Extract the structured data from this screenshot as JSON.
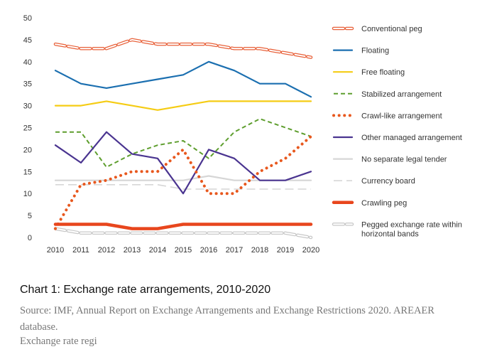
{
  "chart_data": {
    "type": "line",
    "title": "",
    "xlabel": "",
    "ylabel": "",
    "ylim": [
      0,
      50
    ],
    "yticks": [
      "0",
      "5",
      "10",
      "15",
      "20",
      "25",
      "30",
      "35",
      "40",
      "45",
      "50"
    ],
    "categories": [
      "2010",
      "2011",
      "2012",
      "2013",
      "2014",
      "2015",
      "2016",
      "2017",
      "2018",
      "2019",
      "2020"
    ],
    "legend_position": "right",
    "series": [
      {
        "name": "Conventional peg",
        "color": "#e8613a",
        "style": "outline-dash",
        "values": [
          44,
          43,
          43,
          45,
          44,
          44,
          44,
          43,
          43,
          42,
          41
        ]
      },
      {
        "name": "Floating",
        "color": "#1b6fb0",
        "style": "solid",
        "values": [
          38,
          35,
          34,
          35,
          36,
          37,
          40,
          38,
          35,
          35,
          32
        ]
      },
      {
        "name": "Free floating",
        "color": "#f5cc14",
        "style": "solid",
        "values": [
          30,
          30,
          31,
          30,
          29,
          30,
          31,
          31,
          31,
          31,
          31
        ]
      },
      {
        "name": "Stabilized arrangement",
        "color": "#5e9e2e",
        "style": "dashed",
        "values": [
          24,
          24,
          16,
          19,
          21,
          22,
          18,
          24,
          27,
          25,
          23
        ]
      },
      {
        "name": "Crawl-like arrangement",
        "color": "#e8581e",
        "style": "dotted",
        "values": [
          2,
          12,
          13,
          15,
          15,
          20,
          10,
          10,
          15,
          18,
          23
        ]
      },
      {
        "name": "Other managed arrangement",
        "color": "#4a3490",
        "style": "solid",
        "values": [
          21,
          17,
          24,
          19,
          18,
          10,
          20,
          18,
          13,
          13,
          15
        ]
      },
      {
        "name": "No separate legal tender",
        "color": "#d6d6d6",
        "style": "solid",
        "values": [
          13,
          13,
          13,
          13,
          13,
          13,
          14,
          13,
          13,
          13,
          13
        ]
      },
      {
        "name": "Currency board",
        "color": "#d6d6d6",
        "style": "long-dash",
        "values": [
          12,
          12,
          12,
          12,
          12,
          11,
          11,
          11,
          11,
          11,
          11
        ]
      },
      {
        "name": "Crawling peg",
        "color": "#e8461d",
        "style": "thick",
        "values": [
          3,
          3,
          3,
          2,
          2,
          3,
          3,
          3,
          3,
          3,
          3
        ]
      },
      {
        "name": "Pegged exchange rate within horizontal bands",
        "label_lines": [
          "Pegged exchange rate within",
          "horizontal bands"
        ],
        "color": "#c8c8c8",
        "style": "outline-dash",
        "values": [
          2,
          1,
          1,
          1,
          1,
          1,
          1,
          1,
          1,
          1,
          0
        ]
      }
    ]
  },
  "caption": {
    "title": "Chart 1: Exchange rate arrangements, 2010-2020",
    "source": "Source: IMF, Annual Report on Exchange Arrangements and Exchange Restrictions 2020. AREAER database.",
    "cut_text": "Exchange rate regi"
  }
}
